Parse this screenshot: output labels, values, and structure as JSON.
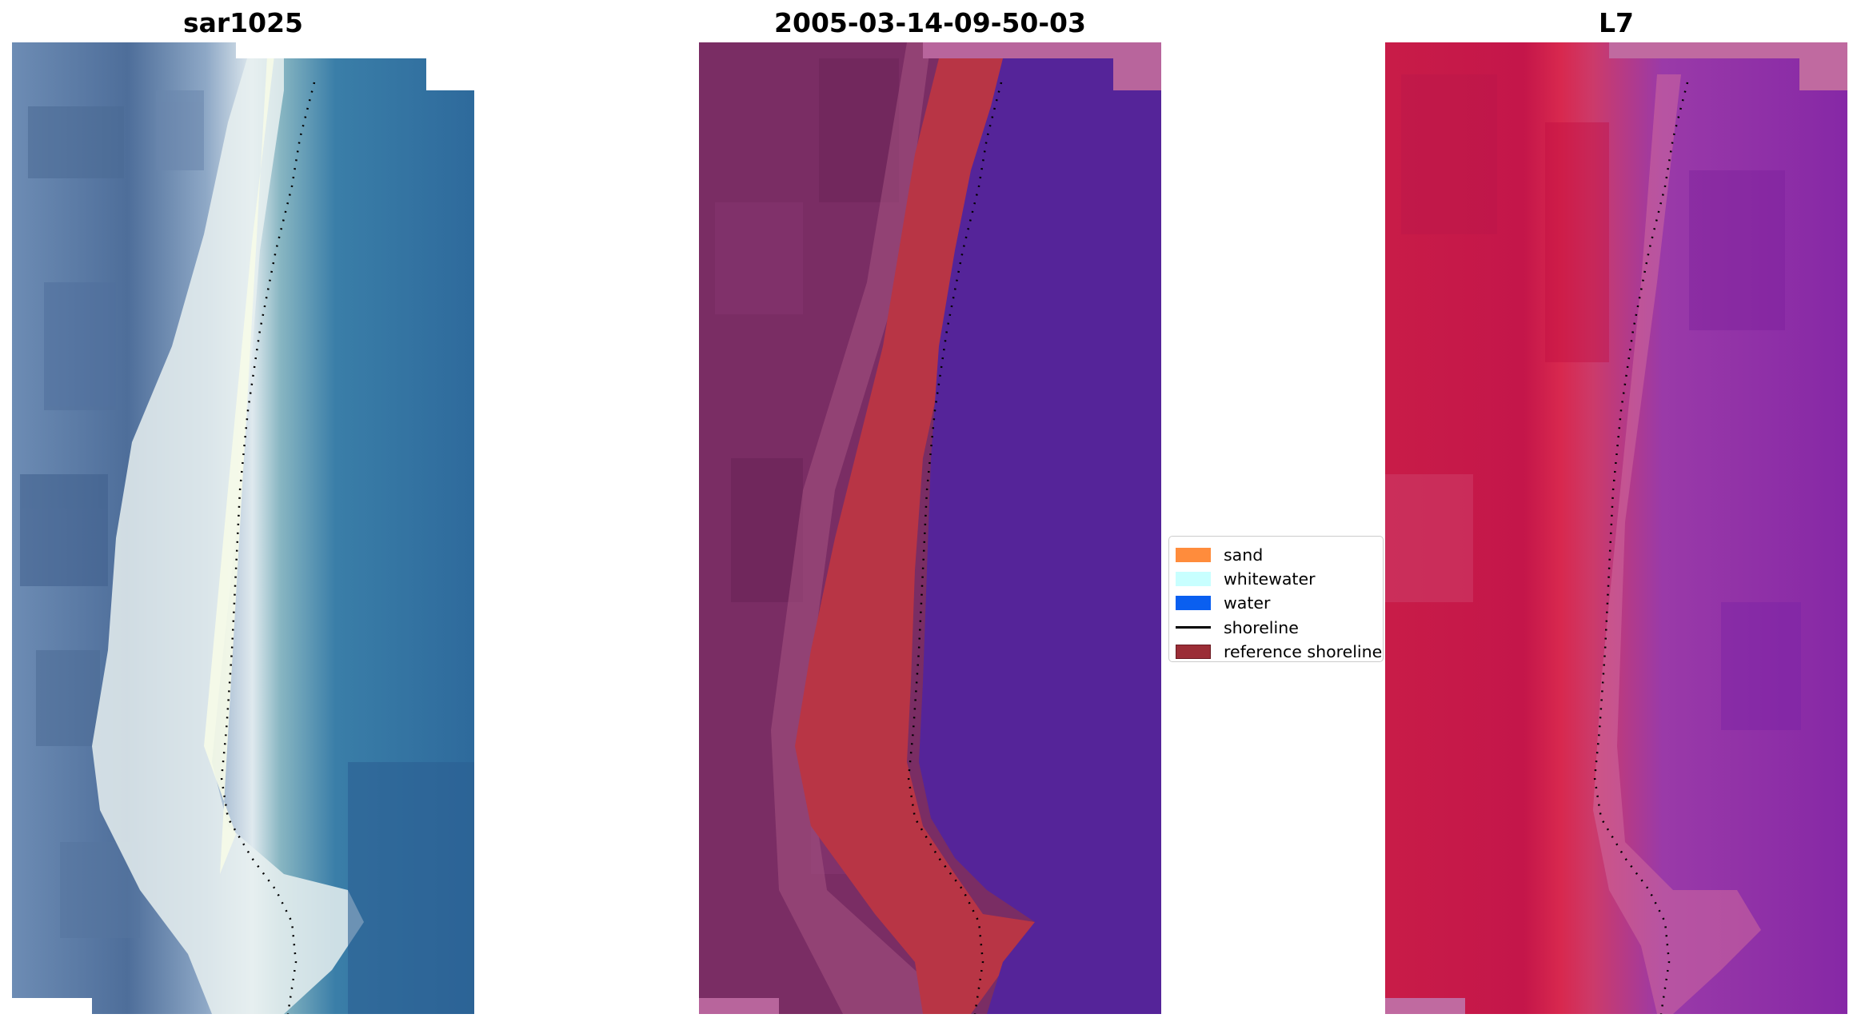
{
  "panels": [
    {
      "title": "sar1025"
    },
    {
      "title": "2005-03-14-09-50-03"
    },
    {
      "title": "L7"
    }
  ],
  "legend": {
    "items": [
      {
        "label": "sand",
        "color": "#ff8c3c",
        "kind": "patch"
      },
      {
        "label": "whitewater",
        "color": "#c8ffff",
        "kind": "patch"
      },
      {
        "label": "water",
        "color": "#0a5ff0",
        "kind": "patch"
      },
      {
        "label": "shoreline",
        "color": "#000000",
        "kind": "line"
      },
      {
        "label": "reference shoreline",
        "color": "#9b2d36",
        "kind": "patch"
      }
    ]
  },
  "colors": {
    "sar_land": "#5a7aa0",
    "sar_surf": "#eef4f2",
    "sar_water": "#2e6f9f",
    "class_land": "#7a2d64",
    "class_band": "#b83545",
    "class_water": "#552499",
    "class_corner": "#b8659c",
    "l7_land": "#c81c48",
    "l7_water": "#8a2aa8",
    "l7_corner": "#c06aa0"
  }
}
